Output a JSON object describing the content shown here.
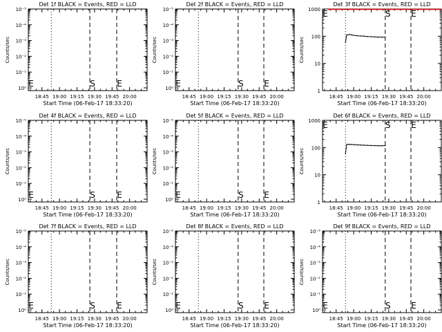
{
  "chart_data": [
    {
      "type": "line",
      "title": "Det 1f BLACK = Events, RED = LLD",
      "xlabel": "Start Time (06-Feb-17 18:33:20)",
      "ylabel": "Counts/sec",
      "x_ticks": [
        "18:45",
        "19:00",
        "19:15",
        "19:30",
        "19:45",
        "20:00"
      ],
      "y_scale": "log",
      "y_ticks": [
        "10⁰",
        "10⁻¹",
        "10⁻²",
        "10⁻³",
        "10⁻⁴",
        "10⁻⁵"
      ],
      "vlines": [
        {
          "style": "dotted",
          "at": "18:53"
        },
        {
          "style": "dashed",
          "at": "19:26",
          "label": "S"
        },
        {
          "style": "dashed",
          "at": "19:49",
          "label": "E"
        }
      ],
      "side_marker": "E",
      "series": []
    },
    {
      "type": "line",
      "title": "Det 2f BLACK = Events, RED = LLD",
      "xlabel": "Start Time (06-Feb-17 18:33:20)",
      "ylabel": "Counts/sec",
      "x_ticks": [
        "18:45",
        "19:00",
        "19:15",
        "19:30",
        "19:45",
        "20:00"
      ],
      "y_scale": "log",
      "y_ticks": [
        "10⁰",
        "10⁻¹",
        "10⁻²",
        "10⁻³",
        "10⁻⁴",
        "10⁻⁵"
      ],
      "vlines": [
        {
          "style": "dotted",
          "at": "18:53"
        },
        {
          "style": "dashed",
          "at": "19:27",
          "label": "S"
        },
        {
          "style": "dashed",
          "at": "19:49",
          "label": "E"
        }
      ],
      "side_marker": "E",
      "series": []
    },
    {
      "type": "line",
      "title": "Det 3f BLACK = Events, RED = LLD",
      "xlabel": "Start Time (06-Feb-17 18:33:20)",
      "ylabel": "Counts/sec",
      "x_ticks": [
        "18:45",
        "19:00",
        "19:15",
        "19:30",
        "19:45",
        "20:00"
      ],
      "y_scale": "log",
      "ylim": [
        1,
        1000
      ],
      "y_ticks": [
        "1",
        "10",
        "100",
        "1000"
      ],
      "vlines": [
        {
          "style": "dotted",
          "at": "18:53"
        },
        {
          "style": "dashed",
          "at": "19:27",
          "label": "S"
        },
        {
          "style": "dashed",
          "at": "19:49",
          "label": "E"
        }
      ],
      "side_marker": "E",
      "red_line": {
        "value": 1000,
        "from": "18:38",
        "to": "20:15"
      },
      "series": [
        {
          "color": "#000000",
          "x": [
            "18:53",
            "18:54",
            "18:56",
            "18:58",
            "19:00",
            "19:03",
            "19:06",
            "19:09",
            "19:12",
            "19:15",
            "19:18",
            "19:21",
            "19:24",
            "19:27"
          ],
          "y": [
            60,
            110,
            115,
            112,
            108,
            104,
            102,
            100,
            97,
            96,
            94,
            93,
            92,
            92
          ]
        }
      ]
    },
    {
      "type": "line",
      "title": "Det 4f BLACK = Events, RED = LLD",
      "xlabel": "Start Time (06-Feb-17 18:33:20)",
      "ylabel": "Counts/sec",
      "x_ticks": [
        "18:45",
        "19:00",
        "19:15",
        "19:30",
        "19:45",
        "20:00"
      ],
      "y_scale": "log",
      "y_ticks": [
        "10⁰",
        "10⁻¹",
        "10⁻²",
        "10⁻³",
        "10⁻⁴",
        "10⁻⁵"
      ],
      "vlines": [
        {
          "style": "dotted",
          "at": "18:53"
        },
        {
          "style": "dashed",
          "at": "19:26",
          "label": "S"
        },
        {
          "style": "dashed",
          "at": "19:49",
          "label": "E"
        }
      ],
      "side_marker": "E",
      "series": []
    },
    {
      "type": "line",
      "title": "Det 5f BLACK = Events, RED = LLD",
      "xlabel": "Start Time (06-Feb-17 18:33:20)",
      "ylabel": "Counts/sec",
      "x_ticks": [
        "18:45",
        "19:00",
        "19:15",
        "19:30",
        "19:45",
        "20:00"
      ],
      "y_scale": "log",
      "y_ticks": [
        "10⁰",
        "10⁻¹",
        "10⁻²",
        "10⁻³",
        "10⁻⁴",
        "10⁻⁵"
      ],
      "vlines": [
        {
          "style": "dotted",
          "at": "18:53"
        },
        {
          "style": "dashed",
          "at": "19:27",
          "label": "S"
        },
        {
          "style": "dashed",
          "at": "19:49",
          "label": "E"
        }
      ],
      "side_marker": "E",
      "series": []
    },
    {
      "type": "line",
      "title": "Det 6f BLACK = Events, RED = LLD",
      "xlabel": "Start Time (06-Feb-17 18:33:20)",
      "ylabel": "Counts/sec",
      "x_ticks": [
        "18:45",
        "19:00",
        "19:15",
        "19:30",
        "19:45",
        "20:00"
      ],
      "y_scale": "log",
      "ylim": [
        1,
        1000
      ],
      "y_ticks": [
        "1",
        "10",
        "100",
        "1000"
      ],
      "vlines": [
        {
          "style": "dotted",
          "at": "18:53"
        },
        {
          "style": "dashed",
          "at": "19:27",
          "label": "S"
        },
        {
          "style": "dashed",
          "at": "19:49",
          "label": "E"
        }
      ],
      "side_marker": "E",
      "series": [
        {
          "color": "#000000",
          "x": [
            "18:53",
            "18:54",
            "18:56",
            "18:58",
            "19:00",
            "19:03",
            "19:06",
            "19:09",
            "19:12",
            "19:15",
            "19:18",
            "19:21",
            "19:24",
            "19:27"
          ],
          "y": [
            60,
            130,
            132,
            130,
            128,
            126,
            124,
            122,
            120,
            119,
            118,
            117,
            117,
            118
          ]
        }
      ]
    },
    {
      "type": "line",
      "title": "Det 7f BLACK = Events, RED = LLD",
      "xlabel": "Start Time (06-Feb-17 18:33:20)",
      "ylabel": "Counts/sec",
      "x_ticks": [
        "18:45",
        "19:00",
        "19:15",
        "19:30",
        "19:45",
        "20:00"
      ],
      "y_scale": "log",
      "y_ticks": [
        "10⁰",
        "10⁻¹",
        "10⁻²",
        "10⁻³",
        "10⁻⁴",
        "10⁻⁵"
      ],
      "vlines": [
        {
          "style": "dotted",
          "at": "18:53"
        },
        {
          "style": "dashed",
          "at": "19:26",
          "label": "S"
        },
        {
          "style": "dashed",
          "at": "19:49",
          "label": "E"
        }
      ],
      "side_marker": "E",
      "series": []
    },
    {
      "type": "line",
      "title": "Det 8f BLACK = Events, RED = LLD",
      "xlabel": "Start Time (06-Feb-17 18:33:20)",
      "ylabel": "Counts/sec",
      "x_ticks": [
        "18:45",
        "19:00",
        "19:15",
        "19:30",
        "19:45",
        "20:00"
      ],
      "y_scale": "log",
      "y_ticks": [
        "10⁰",
        "10⁻¹",
        "10⁻²",
        "10⁻³",
        "10⁻⁴",
        "10⁻⁵"
      ],
      "vlines": [
        {
          "style": "dotted",
          "at": "18:53"
        },
        {
          "style": "dashed",
          "at": "19:27",
          "label": "S"
        },
        {
          "style": "dashed",
          "at": "19:49",
          "label": "E"
        }
      ],
      "side_marker": "E",
      "series": []
    },
    {
      "type": "line",
      "title": "Det 9f BLACK = Events, RED = LLD",
      "xlabel": "Start Time (06-Feb-17 18:33:20)",
      "ylabel": "Counts/sec",
      "x_ticks": [
        "18:45",
        "19:00",
        "19:15",
        "19:30",
        "19:45",
        "20:00"
      ],
      "y_scale": "log",
      "y_ticks": [
        "10⁰",
        "10⁻¹",
        "10⁻²",
        "10⁻³",
        "10⁻⁴",
        "10⁻⁵"
      ],
      "vlines": [
        {
          "style": "dotted",
          "at": "18:53"
        },
        {
          "style": "dashed",
          "at": "19:27",
          "label": "S"
        },
        {
          "style": "dashed",
          "at": "19:49",
          "label": "E"
        }
      ],
      "side_marker": "E",
      "series": []
    }
  ]
}
